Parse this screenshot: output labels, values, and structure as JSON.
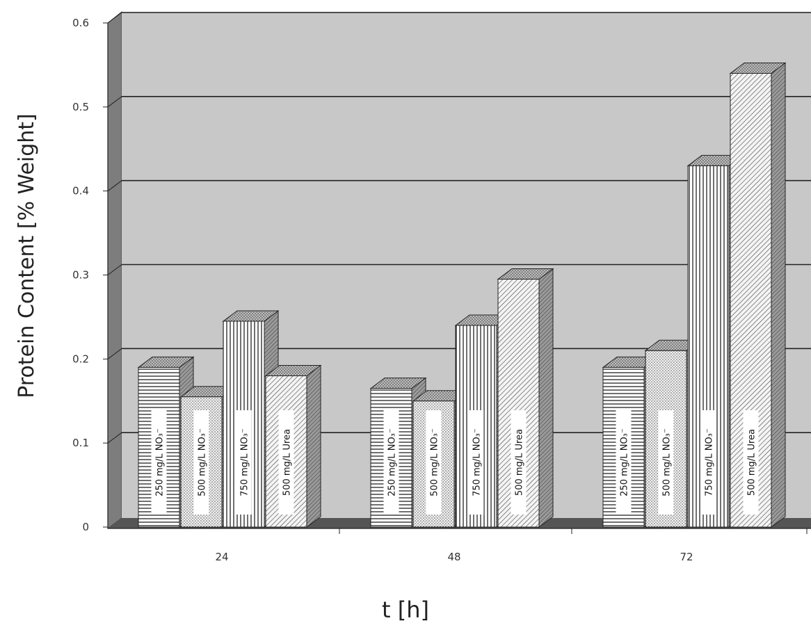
{
  "chart_data": {
    "type": "bar",
    "title": "",
    "xlabel": "t [h]",
    "ylabel": "Protein Content [% Weight]",
    "ylim": [
      0,
      0.6
    ],
    "yticks": [
      "0",
      "0.1",
      "0.2",
      "0.3",
      "0.4",
      "0.5",
      "0.6"
    ],
    "categories": [
      "24",
      "48",
      "72"
    ],
    "grid": true,
    "legend": "none (series named on bars)",
    "series": [
      {
        "name": "250 mg/L NO₃⁻",
        "values": [
          0.19,
          0.165,
          0.19
        ]
      },
      {
        "name": "500 mg/L NO₃⁻",
        "values": [
          0.155,
          0.15,
          0.21
        ]
      },
      {
        "name": "750 mg/L NO₃⁻",
        "values": [
          0.245,
          0.24,
          0.43
        ]
      },
      {
        "name": "500 mg/L Urea",
        "values": [
          0.18,
          0.295,
          0.54
        ]
      }
    ],
    "colors": {
      "wall": "#c8c8c8",
      "wall_dark": "#8a8a8a",
      "grid": "#222222",
      "bar_face": "#ffffff",
      "bar_stroke": "#222222"
    }
  }
}
